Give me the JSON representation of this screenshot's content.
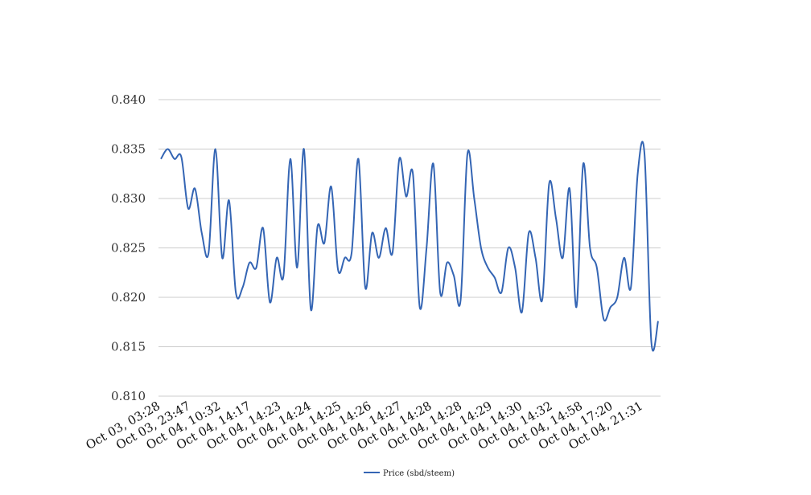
{
  "chart_data": {
    "type": "line",
    "title": "",
    "xlabel": "",
    "ylabel": "",
    "ylim": [
      0.81,
      0.84
    ],
    "yticks": [
      "0.810",
      "0.815",
      "0.820",
      "0.825",
      "0.830",
      "0.835",
      "0.840"
    ],
    "grid": true,
    "legend_position": "bottom-center",
    "x_tick_labels": [
      "Oct 03, 03:28",
      "Oct 03, 23:47",
      "Oct 04, 10:32",
      "Oct 04, 14:17",
      "Oct 04, 14:23",
      "Oct 04, 14:24",
      "Oct 04, 14:25",
      "Oct 04, 14:26",
      "Oct 04, 14:27",
      "Oct 04, 14:28",
      "Oct 04, 14:28",
      "Oct 04, 14:29",
      "Oct 04, 14:30",
      "Oct 04, 14:32",
      "Oct 04, 14:58",
      "Oct 04, 17:20",
      "Oct 04, 21:31"
    ],
    "series": [
      {
        "name": "Price (sbd/steem)",
        "color": "#3465b4",
        "values": [
          0.834,
          0.835,
          0.834,
          0.8342,
          0.829,
          0.831,
          0.8265,
          0.8245,
          0.835,
          0.824,
          0.8298,
          0.8205,
          0.821,
          0.8235,
          0.823,
          0.827,
          0.8195,
          0.824,
          0.8222,
          0.834,
          0.823,
          0.835,
          0.8188,
          0.8272,
          0.8255,
          0.8312,
          0.8228,
          0.824,
          0.8245,
          0.834,
          0.821,
          0.8265,
          0.824,
          0.827,
          0.8245,
          0.834,
          0.8302,
          0.8325,
          0.819,
          0.825,
          0.8335,
          0.8205,
          0.8235,
          0.8222,
          0.8197,
          0.8345,
          0.83,
          0.825,
          0.823,
          0.822,
          0.8205,
          0.825,
          0.823,
          0.8185,
          0.8265,
          0.824,
          0.8198,
          0.8315,
          0.828,
          0.824,
          0.831,
          0.819,
          0.8335,
          0.825,
          0.823,
          0.8178,
          0.819,
          0.82,
          0.824,
          0.821,
          0.8325,
          0.8345,
          0.8155,
          0.8176
        ]
      }
    ]
  }
}
